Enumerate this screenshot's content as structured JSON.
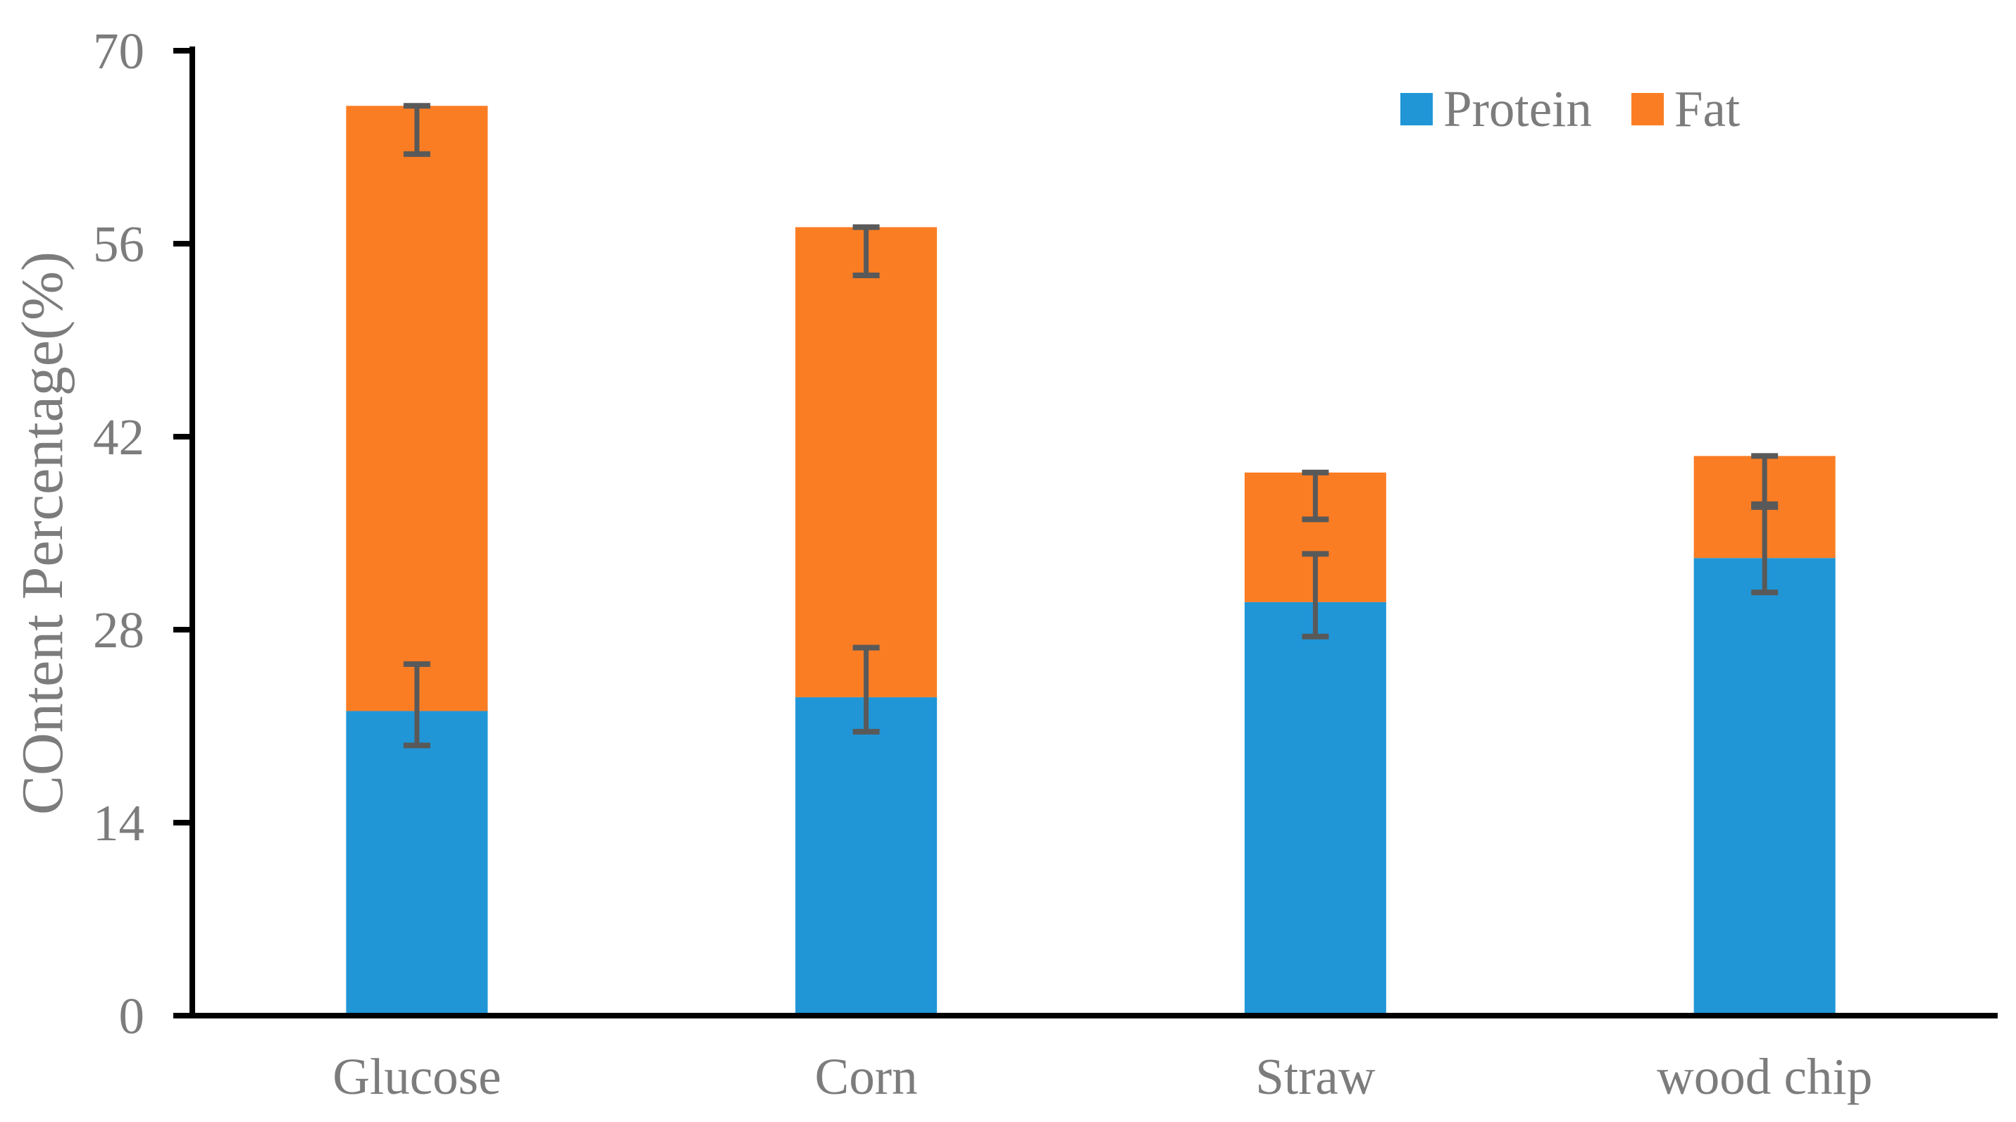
{
  "chart_data": {
    "type": "bar",
    "stacked": true,
    "title": "",
    "xlabel": "",
    "ylabel": "COntent Percentage(%)",
    "categories": [
      "Glucose",
      "Corn",
      "Straw",
      "wood chip"
    ],
    "series": [
      {
        "name": "Protein",
        "color": "#2096D7",
        "values": [
          22.1,
          23.1,
          30.0,
          33.2
        ]
      },
      {
        "name": "Fat",
        "color": "#FB7D23",
        "values": [
          43.9,
          34.1,
          9.4,
          7.4
        ]
      }
    ],
    "stack_totals": [
      66.0,
      57.2,
      39.4,
      40.6
    ],
    "error_bars": {
      "color": "#595959",
      "protein_segment": [
        {
          "upper": 25.5,
          "lower": 19.6
        },
        {
          "upper": 26.7,
          "lower": 20.6
        },
        {
          "upper": 33.5,
          "lower": 27.5
        },
        {
          "upper": 36.9,
          "lower": 30.7
        }
      ],
      "stack_total": [
        {
          "upper": 66.0,
          "lower": 62.5
        },
        {
          "upper": 57.2,
          "lower": 53.7
        },
        {
          "upper": 39.4,
          "lower": 36.0
        },
        {
          "upper": 40.6,
          "lower": 37.1
        }
      ]
    },
    "y_axis": {
      "min": 0,
      "max": 70,
      "ticks": [
        0,
        14,
        28,
        42,
        56,
        70
      ]
    },
    "legend": {
      "position": "top-right",
      "items": [
        "Protein",
        "Fat"
      ]
    },
    "grid": false,
    "colors": {
      "axis": "#000000",
      "tick_label": "#7c7c7c",
      "category_label": "#7c7c7c",
      "axis_title": "#7c7c7c",
      "legend_label": "#7c7c7c",
      "error_bar": "#595959",
      "background": "#ffffff"
    }
  }
}
